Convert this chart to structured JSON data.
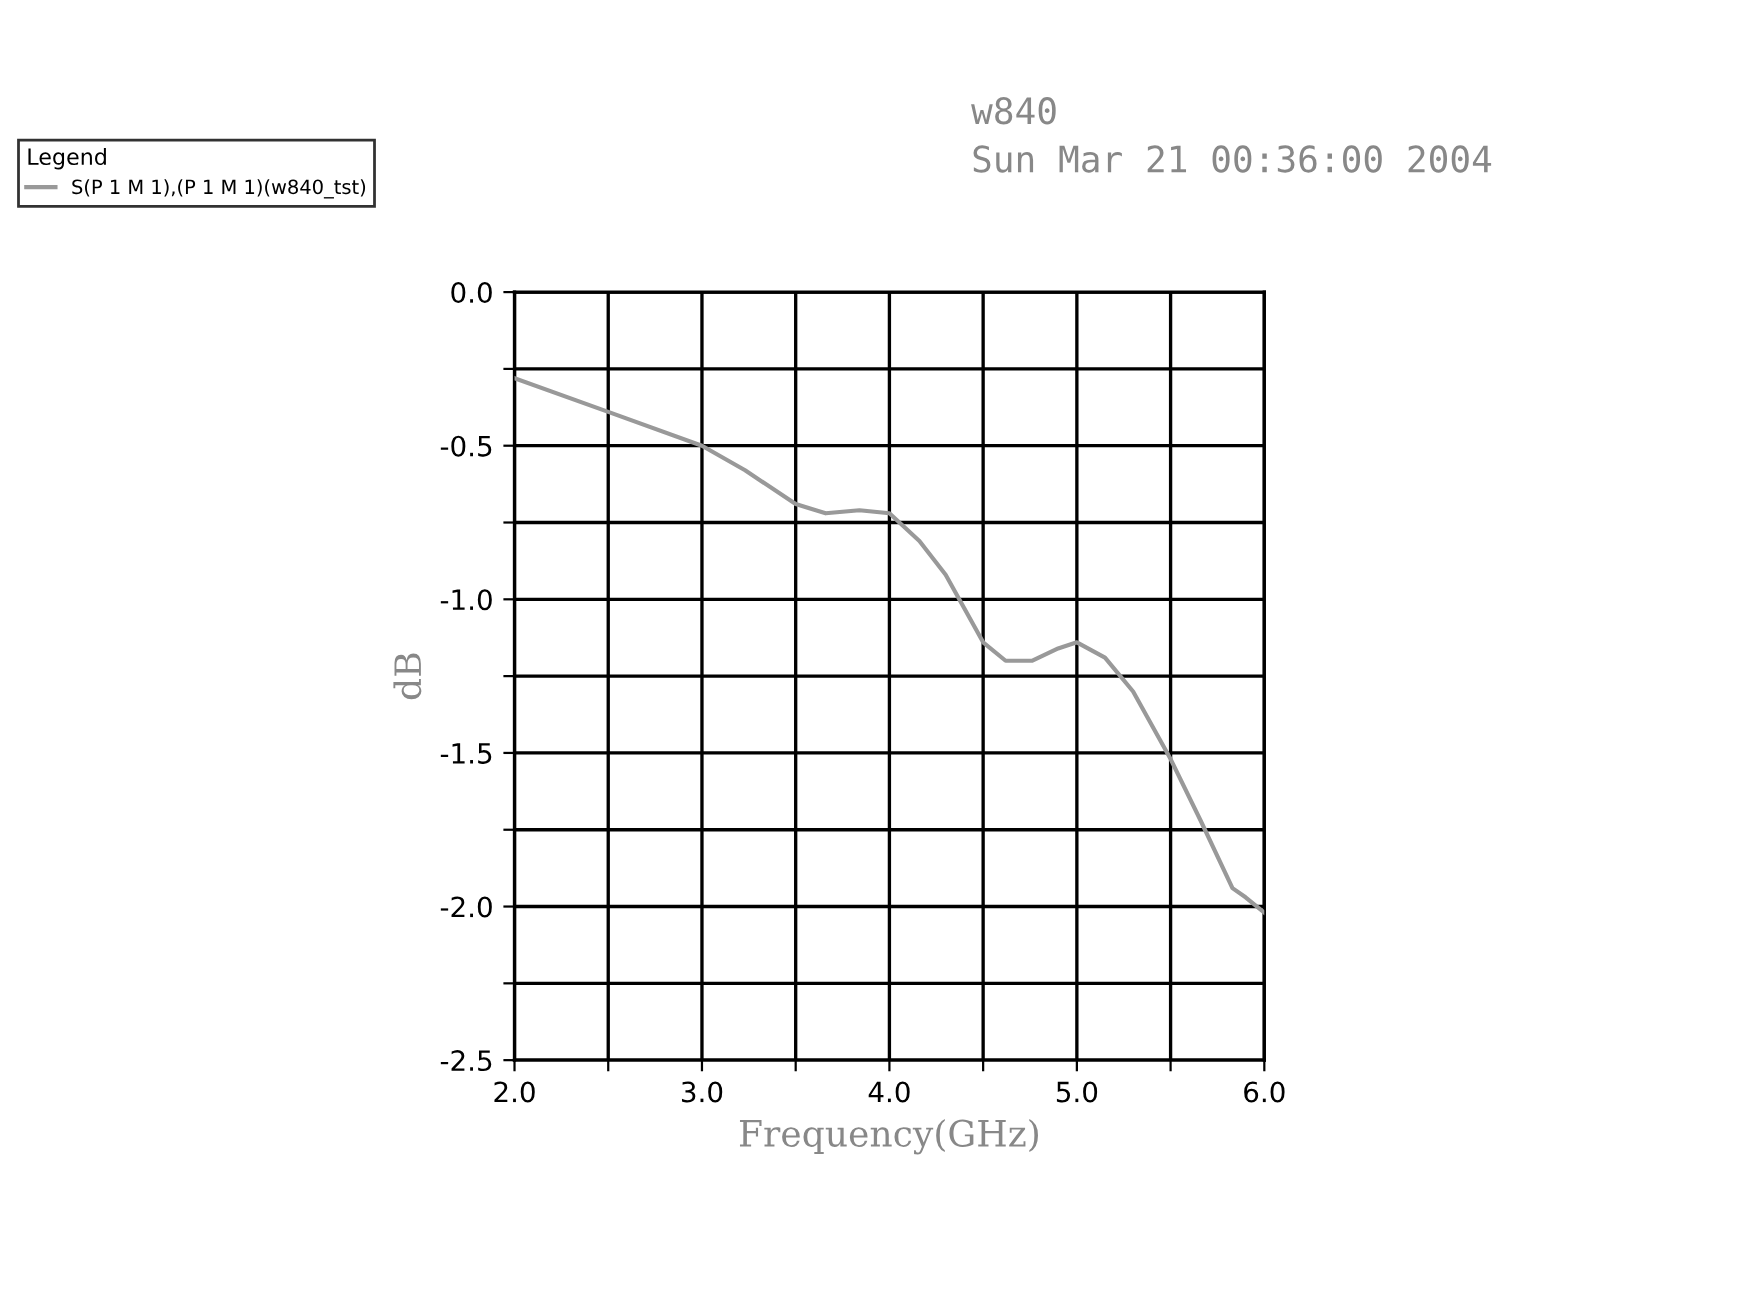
{
  "chart_data": {
    "type": "line",
    "title": "w840",
    "subtitle": "Sun Mar 21 00:36:00 2004",
    "xlabel": "Frequency(GHz)",
    "ylabel": "dB",
    "legend_title": "Legend",
    "x": [
      2.0,
      2.5,
      3.0,
      3.23,
      3.5,
      3.66,
      3.84,
      4.0,
      4.16,
      4.3,
      4.4,
      4.5,
      4.62,
      4.76,
      4.9,
      5.0,
      5.15,
      5.3,
      5.5,
      5.66,
      5.83,
      5.9,
      6.0
    ],
    "series": [
      {
        "name": "S(P 1 M 1),(P 1 M 1)(w840_tst)",
        "color": "#999999",
        "values": [
          -0.28,
          -0.39,
          -0.5,
          -0.58,
          -0.69,
          -0.72,
          -0.71,
          -0.72,
          -0.81,
          -0.92,
          -1.03,
          -1.14,
          -1.2,
          -1.2,
          -1.16,
          -1.14,
          -1.19,
          -1.3,
          -1.52,
          -1.72,
          -1.94,
          -1.97,
          -2.02
        ]
      }
    ],
    "xlim": [
      2.0,
      6.0
    ],
    "ylim": [
      -2.5,
      0.0
    ],
    "xticks": [
      {
        "value": 2.0,
        "label": "2.0"
      },
      {
        "value": 2.5,
        "label": null
      },
      {
        "value": 3.0,
        "label": "3.0"
      },
      {
        "value": 3.5,
        "label": null
      },
      {
        "value": 4.0,
        "label": "4.0"
      },
      {
        "value": 4.5,
        "label": null
      },
      {
        "value": 5.0,
        "label": "5.0"
      },
      {
        "value": 5.5,
        "label": null
      },
      {
        "value": 6.0,
        "label": "6.0"
      }
    ],
    "yticks": [
      {
        "value": -2.5,
        "label": "-2.5"
      },
      {
        "value": -2.25,
        "label": null
      },
      {
        "value": -2.0,
        "label": "-2.0"
      },
      {
        "value": -1.75,
        "label": null
      },
      {
        "value": -1.5,
        "label": "-1.5"
      },
      {
        "value": -1.25,
        "label": null
      },
      {
        "value": -1.0,
        "label": "-1.0"
      },
      {
        "value": -0.75,
        "label": null
      },
      {
        "value": -0.5,
        "label": "-0.5"
      },
      {
        "value": -0.25,
        "label": null
      },
      {
        "value": 0.0,
        "label": "0.0"
      }
    ],
    "grid": true,
    "legend": "top left",
    "line_style": "solid",
    "marker": "none"
  }
}
